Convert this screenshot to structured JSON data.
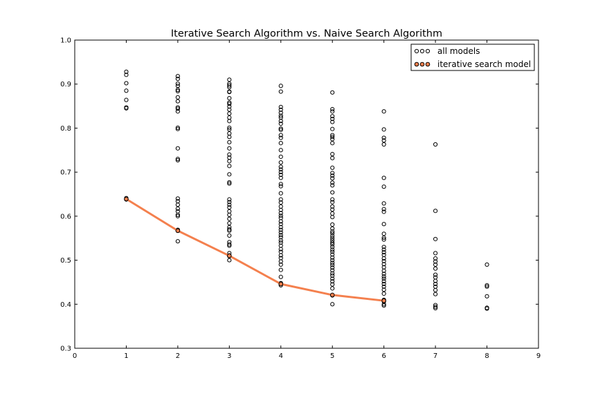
{
  "chart_data": {
    "type": "scatter",
    "title": "Iterative Search Algorithm vs. Naive Search Algorithm",
    "xlabel": "",
    "ylabel": "",
    "xlim": [
      0,
      9
    ],
    "ylim": [
      0.3,
      1.0
    ],
    "x_ticks": [
      "0",
      "1",
      "2",
      "3",
      "4",
      "5",
      "6",
      "7",
      "8",
      "9"
    ],
    "y_ticks": [
      "0.3",
      "0.4",
      "0.5",
      "0.6",
      "0.7",
      "0.8",
      "0.9",
      "1.0"
    ],
    "grid": false,
    "legend_position": "top-right",
    "series": [
      {
        "name": "all models",
        "kind": "scatter",
        "marker": "hollow-circle",
        "color": "#000000",
        "points": [
          [
            1,
            0.928
          ],
          [
            1,
            0.921
          ],
          [
            1,
            0.902
          ],
          [
            1,
            0.885
          ],
          [
            1,
            0.864
          ],
          [
            1,
            0.847
          ],
          [
            1,
            0.845
          ],
          [
            1,
            0.641
          ],
          [
            1,
            0.638
          ],
          [
            2,
            0.918
          ],
          [
            2,
            0.912
          ],
          [
            2,
            0.901
          ],
          [
            2,
            0.896
          ],
          [
            2,
            0.887
          ],
          [
            2,
            0.884
          ],
          [
            2,
            0.87
          ],
          [
            2,
            0.861
          ],
          [
            2,
            0.847
          ],
          [
            2,
            0.844
          ],
          [
            2,
            0.838
          ],
          [
            2,
            0.801
          ],
          [
            2,
            0.798
          ],
          [
            2,
            0.754
          ],
          [
            2,
            0.73
          ],
          [
            2,
            0.727
          ],
          [
            2,
            0.64
          ],
          [
            2,
            0.634
          ],
          [
            2,
            0.626
          ],
          [
            2,
            0.617
          ],
          [
            2,
            0.611
          ],
          [
            2,
            0.603
          ],
          [
            2,
            0.6
          ],
          [
            2,
            0.569
          ],
          [
            2,
            0.567
          ],
          [
            2,
            0.543
          ],
          [
            3,
            0.91
          ],
          [
            3,
            0.901
          ],
          [
            3,
            0.897
          ],
          [
            3,
            0.893
          ],
          [
            3,
            0.883
          ],
          [
            3,
            0.882
          ],
          [
            3,
            0.868
          ],
          [
            3,
            0.858
          ],
          [
            3,
            0.855
          ],
          [
            3,
            0.849
          ],
          [
            3,
            0.842
          ],
          [
            3,
            0.833
          ],
          [
            3,
            0.824
          ],
          [
            3,
            0.816
          ],
          [
            3,
            0.801
          ],
          [
            3,
            0.797
          ],
          [
            3,
            0.788
          ],
          [
            3,
            0.78
          ],
          [
            3,
            0.768
          ],
          [
            3,
            0.754
          ],
          [
            3,
            0.74
          ],
          [
            3,
            0.733
          ],
          [
            3,
            0.725
          ],
          [
            3,
            0.714
          ],
          [
            3,
            0.695
          ],
          [
            3,
            0.677
          ],
          [
            3,
            0.674
          ],
          [
            3,
            0.638
          ],
          [
            3,
            0.632
          ],
          [
            3,
            0.626
          ],
          [
            3,
            0.62
          ],
          [
            3,
            0.611
          ],
          [
            3,
            0.603
          ],
          [
            3,
            0.594
          ],
          [
            3,
            0.584
          ],
          [
            3,
            0.575
          ],
          [
            3,
            0.57
          ],
          [
            3,
            0.567
          ],
          [
            3,
            0.556
          ],
          [
            3,
            0.541
          ],
          [
            3,
            0.536
          ],
          [
            3,
            0.533
          ],
          [
            3,
            0.516
          ],
          [
            3,
            0.511
          ],
          [
            3,
            0.509
          ],
          [
            3,
            0.5
          ],
          [
            4,
            0.896
          ],
          [
            4,
            0.883
          ],
          [
            4,
            0.848
          ],
          [
            4,
            0.842
          ],
          [
            4,
            0.835
          ],
          [
            4,
            0.828
          ],
          [
            4,
            0.824
          ],
          [
            4,
            0.816
          ],
          [
            4,
            0.81
          ],
          [
            4,
            0.799
          ],
          [
            4,
            0.796
          ],
          [
            4,
            0.784
          ],
          [
            4,
            0.778
          ],
          [
            4,
            0.766
          ],
          [
            4,
            0.75
          ],
          [
            4,
            0.735
          ],
          [
            4,
            0.722
          ],
          [
            4,
            0.712
          ],
          [
            4,
            0.706
          ],
          [
            4,
            0.7
          ],
          [
            4,
            0.694
          ],
          [
            4,
            0.687
          ],
          [
            4,
            0.673
          ],
          [
            4,
            0.668
          ],
          [
            4,
            0.652
          ],
          [
            4,
            0.638
          ],
          [
            4,
            0.631
          ],
          [
            4,
            0.622
          ],
          [
            4,
            0.614
          ],
          [
            4,
            0.607
          ],
          [
            4,
            0.601
          ],
          [
            4,
            0.596
          ],
          [
            4,
            0.588
          ],
          [
            4,
            0.582
          ],
          [
            4,
            0.575
          ],
          [
            4,
            0.569
          ],
          [
            4,
            0.563
          ],
          [
            4,
            0.557
          ],
          [
            4,
            0.552
          ],
          [
            4,
            0.545
          ],
          [
            4,
            0.54
          ],
          [
            4,
            0.533
          ],
          [
            4,
            0.525
          ],
          [
            4,
            0.519
          ],
          [
            4,
            0.511
          ],
          [
            4,
            0.505
          ],
          [
            4,
            0.497
          ],
          [
            4,
            0.49
          ],
          [
            4,
            0.478
          ],
          [
            4,
            0.462
          ],
          [
            4,
            0.448
          ],
          [
            4,
            0.446
          ],
          [
            4,
            0.443
          ],
          [
            5,
            0.881
          ],
          [
            5,
            0.843
          ],
          [
            5,
            0.838
          ],
          [
            5,
            0.827
          ],
          [
            5,
            0.821
          ],
          [
            5,
            0.814
          ],
          [
            5,
            0.798
          ],
          [
            5,
            0.784
          ],
          [
            5,
            0.78
          ],
          [
            5,
            0.775
          ],
          [
            5,
            0.766
          ],
          [
            5,
            0.741
          ],
          [
            5,
            0.732
          ],
          [
            5,
            0.71
          ],
          [
            5,
            0.698
          ],
          [
            5,
            0.692
          ],
          [
            5,
            0.686
          ],
          [
            5,
            0.676
          ],
          [
            5,
            0.67
          ],
          [
            5,
            0.654
          ],
          [
            5,
            0.638
          ],
          [
            5,
            0.632
          ],
          [
            5,
            0.622
          ],
          [
            5,
            0.615
          ],
          [
            5,
            0.606
          ],
          [
            5,
            0.598
          ],
          [
            5,
            0.581
          ],
          [
            5,
            0.572
          ],
          [
            5,
            0.565
          ],
          [
            5,
            0.561
          ],
          [
            5,
            0.555
          ],
          [
            5,
            0.55
          ],
          [
            5,
            0.545
          ],
          [
            5,
            0.54
          ],
          [
            5,
            0.536
          ],
          [
            5,
            0.53
          ],
          [
            5,
            0.524
          ],
          [
            5,
            0.519
          ],
          [
            5,
            0.513
          ],
          [
            5,
            0.506
          ],
          [
            5,
            0.5
          ],
          [
            5,
            0.494
          ],
          [
            5,
            0.489
          ],
          [
            5,
            0.483
          ],
          [
            5,
            0.477
          ],
          [
            5,
            0.47
          ],
          [
            5,
            0.465
          ],
          [
            5,
            0.458
          ],
          [
            5,
            0.452
          ],
          [
            5,
            0.445
          ],
          [
            5,
            0.436
          ],
          [
            5,
            0.42
          ],
          [
            5,
            0.4
          ],
          [
            6,
            0.838
          ],
          [
            6,
            0.797
          ],
          [
            6,
            0.778
          ],
          [
            6,
            0.772
          ],
          [
            6,
            0.763
          ],
          [
            6,
            0.687
          ],
          [
            6,
            0.667
          ],
          [
            6,
            0.629
          ],
          [
            6,
            0.616
          ],
          [
            6,
            0.61
          ],
          [
            6,
            0.582
          ],
          [
            6,
            0.56
          ],
          [
            6,
            0.551
          ],
          [
            6,
            0.547
          ],
          [
            6,
            0.53
          ],
          [
            6,
            0.524
          ],
          [
            6,
            0.518
          ],
          [
            6,
            0.512
          ],
          [
            6,
            0.504
          ],
          [
            6,
            0.498
          ],
          [
            6,
            0.491
          ],
          [
            6,
            0.484
          ],
          [
            6,
            0.476
          ],
          [
            6,
            0.469
          ],
          [
            6,
            0.463
          ],
          [
            6,
            0.458
          ],
          [
            6,
            0.452
          ],
          [
            6,
            0.446
          ],
          [
            6,
            0.44
          ],
          [
            6,
            0.433
          ],
          [
            6,
            0.424
          ],
          [
            6,
            0.41
          ],
          [
            6,
            0.406
          ],
          [
            6,
            0.4
          ],
          [
            6,
            0.397
          ],
          [
            7,
            0.763
          ],
          [
            7,
            0.612
          ],
          [
            7,
            0.548
          ],
          [
            7,
            0.516
          ],
          [
            7,
            0.504
          ],
          [
            7,
            0.497
          ],
          [
            7,
            0.49
          ],
          [
            7,
            0.481
          ],
          [
            7,
            0.467
          ],
          [
            7,
            0.461
          ],
          [
            7,
            0.453
          ],
          [
            7,
            0.446
          ],
          [
            7,
            0.44
          ],
          [
            7,
            0.432
          ],
          [
            7,
            0.423
          ],
          [
            7,
            0.398
          ],
          [
            7,
            0.394
          ],
          [
            7,
            0.391
          ],
          [
            8,
            0.49
          ],
          [
            8,
            0.443
          ],
          [
            8,
            0.44
          ],
          [
            8,
            0.418
          ],
          [
            8,
            0.392
          ],
          [
            8,
            0.39
          ]
        ]
      },
      {
        "name": "iterative search model",
        "kind": "line+scatter",
        "marker": "filled-circle",
        "color": "#f4804e",
        "x": [
          1,
          2,
          3,
          4,
          5,
          6
        ],
        "y": [
          0.639,
          0.567,
          0.51,
          0.446,
          0.421,
          0.408
        ]
      }
    ]
  }
}
